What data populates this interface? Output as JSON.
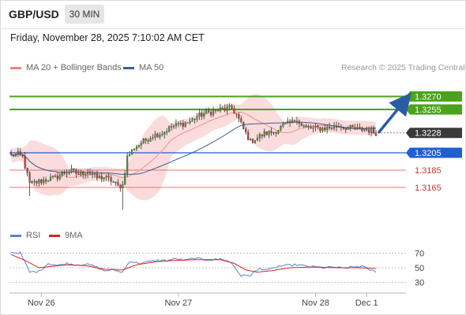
{
  "header": {
    "pair": "GBP/USD",
    "timeframe": "30 MIN",
    "datetime": "Friday, November 28, 2025 7:10:02 AM CET"
  },
  "legend": {
    "ma20_label": "MA 20 + Bollinger Bands",
    "ma50_label": "MA 50",
    "credit": "Research © 2025 Trading Central"
  },
  "rsi_legend": {
    "rsi_label": "RSI",
    "ma9_label": "9MA"
  },
  "colors": {
    "up_candle": "#4a9a2e",
    "down_candle": "#c0392b",
    "bollinger_fill": "#fadcdc",
    "ma20": "#ef8f8f",
    "ma50": "#3b5f9a",
    "resistance": "#4aa31a",
    "current": "#3a3a3a",
    "pivot": "#1f5fd1",
    "support": "#e57777",
    "arrow": "#2a5da0",
    "rsi_line": "#5a7fd6",
    "rsi_ma": "#e01e1e"
  },
  "chart_data": [
    {
      "type": "candlestick",
      "title": "GBP/USD 30 MIN",
      "ylim": [
        1.3125,
        1.3295
      ],
      "x_ticks": [
        "Nov 26",
        "Nov 27",
        "Nov 28",
        "Dec 1"
      ],
      "levels": [
        {
          "label": "1.3270",
          "value": 1.327,
          "kind": "resistance"
        },
        {
          "label": "1.3255",
          "value": 1.3255,
          "kind": "resistance"
        },
        {
          "label": "1.3228",
          "value": 1.3228,
          "kind": "current"
        },
        {
          "label": "1.3205",
          "value": 1.3205,
          "kind": "pivot"
        },
        {
          "label": "1.3185",
          "value": 1.3185,
          "kind": "support"
        },
        {
          "label": "1.3165",
          "value": 1.3165,
          "kind": "support"
        }
      ],
      "forecast_arrow": {
        "from": 1.3229,
        "to": 1.327,
        "direction": "up"
      },
      "close_anchors": [
        [
          0,
          1.3202
        ],
        [
          3,
          1.3203
        ],
        [
          5,
          1.32
        ],
        [
          8,
          1.3169
        ],
        [
          11,
          1.3171
        ],
        [
          15,
          1.3174
        ],
        [
          19,
          1.3176
        ],
        [
          23,
          1.3182
        ],
        [
          26,
          1.3184
        ],
        [
          29,
          1.318
        ],
        [
          33,
          1.3184
        ],
        [
          37,
          1.3176
        ],
        [
          40,
          1.3177
        ],
        [
          43,
          1.3173
        ],
        [
          46,
          1.3166
        ],
        [
          48,
          1.3168
        ],
        [
          50,
          1.32
        ],
        [
          53,
          1.3211
        ],
        [
          57,
          1.3218
        ],
        [
          61,
          1.3225
        ],
        [
          65,
          1.3228
        ],
        [
          69,
          1.3235
        ],
        [
          73,
          1.3238
        ],
        [
          77,
          1.3241
        ],
        [
          80,
          1.3247
        ],
        [
          83,
          1.325
        ],
        [
          86,
          1.3252
        ],
        [
          89,
          1.3254
        ],
        [
          93,
          1.3256
        ],
        [
          95,
          1.3256
        ],
        [
          97,
          1.3249
        ],
        [
          100,
          1.3232
        ],
        [
          103,
          1.3218
        ],
        [
          105,
          1.3221
        ],
        [
          109,
          1.3227
        ],
        [
          113,
          1.3229
        ],
        [
          117,
          1.3236
        ],
        [
          121,
          1.324
        ],
        [
          123,
          1.3245
        ],
        [
          125,
          1.3236
        ],
        [
          129,
          1.3233
        ],
        [
          133,
          1.3233
        ],
        [
          137,
          1.3234
        ],
        [
          141,
          1.3236
        ],
        [
          145,
          1.3234
        ],
        [
          149,
          1.3232
        ],
        [
          153,
          1.3232
        ],
        [
          156,
          1.3229
        ],
        [
          157,
          1.3228
        ]
      ],
      "spikes": {
        "low": [
          [
            8,
            1.3155
          ],
          [
            48,
            1.3139
          ]
        ],
        "high": [
          [
            94,
            1.3262
          ]
        ]
      }
    },
    {
      "type": "line",
      "title": "RSI",
      "ylim": [
        20,
        80
      ],
      "y_ticks": [
        70,
        50,
        30
      ],
      "series": [
        {
          "name": "RSI",
          "anchors": [
            [
              0,
              71
            ],
            [
              4,
              70
            ],
            [
              8,
              44
            ],
            [
              12,
              45
            ],
            [
              16,
              56
            ],
            [
              20,
              53
            ],
            [
              24,
              56
            ],
            [
              28,
              54
            ],
            [
              32,
              55
            ],
            [
              36,
              52
            ],
            [
              40,
              46
            ],
            [
              44,
              47
            ],
            [
              48,
              44
            ],
            [
              51,
              59
            ],
            [
              55,
              56
            ],
            [
              59,
              58
            ],
            [
              63,
              60
            ],
            [
              67,
              60
            ],
            [
              71,
              62
            ],
            [
              75,
              60
            ],
            [
              79,
              63
            ],
            [
              83,
              61
            ],
            [
              87,
              61
            ],
            [
              91,
              62
            ],
            [
              95,
              56
            ],
            [
              99,
              39
            ],
            [
              103,
              40
            ],
            [
              107,
              49
            ],
            [
              111,
              47
            ],
            [
              115,
              52
            ],
            [
              119,
              53
            ],
            [
              123,
              54
            ],
            [
              127,
              52
            ],
            [
              131,
              51
            ],
            [
              135,
              50
            ],
            [
              139,
              51
            ],
            [
              143,
              49
            ],
            [
              147,
              51
            ],
            [
              151,
              52
            ],
            [
              155,
              46
            ],
            [
              157,
              45
            ]
          ]
        },
        {
          "name": "9MA",
          "anchors": [
            [
              0,
              68
            ],
            [
              6,
              60
            ],
            [
              12,
              50
            ],
            [
              18,
              52
            ],
            [
              24,
              54
            ],
            [
              32,
              53
            ],
            [
              40,
              48
            ],
            [
              48,
              47
            ],
            [
              54,
              54
            ],
            [
              62,
              58
            ],
            [
              70,
              60
            ],
            [
              80,
              61
            ],
            [
              90,
              61
            ],
            [
              96,
              56
            ],
            [
              101,
              47
            ],
            [
              106,
              44
            ],
            [
              112,
              46
            ],
            [
              120,
              50
            ],
            [
              130,
              51
            ],
            [
              140,
              50
            ],
            [
              150,
              50
            ],
            [
              157,
              49
            ]
          ]
        }
      ]
    }
  ]
}
